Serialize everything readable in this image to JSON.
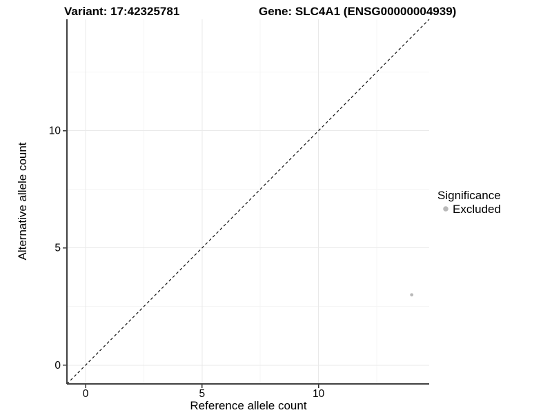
{
  "titles": {
    "variant": "Variant: 17:42325781",
    "gene": "Gene: SLC4A1 (ENSG00000004939)"
  },
  "axes": {
    "x_label": "Reference allele count",
    "y_label": "Alternative allele count"
  },
  "legend": {
    "title": "Significance",
    "items": [
      {
        "label": "Excluded",
        "color": "#b9b9b9"
      }
    ]
  },
  "colors": {
    "background": "#ffffff",
    "axis": "#404040",
    "tick": "#333333",
    "tick_label": "#1a1a1a",
    "grid_major": "#e9e9e9",
    "grid_minor": "#f5f5f5",
    "identity_line": "#111111",
    "point": "#b9b9b9"
  },
  "chart_data": {
    "type": "scatter",
    "title": [
      "Variant: 17:42325781",
      "Gene: SLC4A1 (ENSG00000004939)"
    ],
    "xlabel": "Reference allele count",
    "ylabel": "Alternative allele count",
    "xlim": [
      -0.8,
      14.75
    ],
    "ylim": [
      -0.8,
      14.75
    ],
    "x_ticks": [
      0,
      5,
      10
    ],
    "y_ticks": [
      0,
      5,
      10
    ],
    "x_minor_ticks": [
      2.5,
      7.5,
      12.5
    ],
    "y_minor_ticks": [
      2.5,
      7.5,
      12.5
    ],
    "grid": "major+minor",
    "legend_position": "right",
    "legend_title": "Significance",
    "reference_line": {
      "type": "identity",
      "style": "dashed",
      "span": [
        -0.8,
        14.75
      ]
    },
    "series": [
      {
        "name": "Excluded",
        "color": "#b9b9b9",
        "points": [
          {
            "x": 14,
            "y": 3
          }
        ]
      }
    ]
  }
}
